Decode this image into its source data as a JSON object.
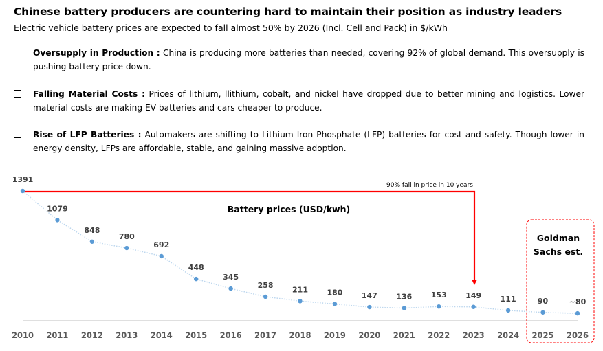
{
  "header": {
    "title": "Chinese battery producers are countering hard to maintain their position as industry leaders",
    "subtitle": "Electric vehicle battery prices are expected to fall almost 50% by 2026 (Incl. Cell and Pack) in $/kWh"
  },
  "bullets": [
    {
      "heading": "Oversupply in Production :",
      "text": " China is producing more batteries than needed, covering 92% of global demand. This oversupply is pushing battery price down."
    },
    {
      "heading": "Falling Material Costs :",
      "text": " Prices of lithium, llithium, cobalt, and nickel have dropped due to better mining and logistics. Lower material costs are making EV batteries and cars cheaper to produce."
    },
    {
      "heading": "Rise of LFP Batteries :",
      "text": " Automakers are shifting to Lithium Iron Phosphate (LFP) batteries for cost and safety. Though lower in energy density, LFPs are affordable, stable, and gaining massive adoption."
    }
  ],
  "chart_data": {
    "type": "line",
    "title": "Battery prices (USD/kwh)",
    "categories": [
      "2010",
      "2011",
      "2012",
      "2013",
      "2014",
      "2015",
      "2016",
      "2017",
      "2018",
      "2019",
      "2020",
      "2021",
      "2022",
      "2023",
      "2024",
      "2025",
      "2026"
    ],
    "values": [
      1391,
      1079,
      848,
      780,
      692,
      448,
      345,
      258,
      211,
      180,
      147,
      136,
      153,
      149,
      111,
      90,
      80
    ],
    "data_labels": [
      "1391",
      "1079",
      "848",
      "780",
      "692",
      "448",
      "345",
      "258",
      "211",
      "180",
      "147",
      "136",
      "153",
      "149",
      "111",
      "90",
      "~80"
    ],
    "ylim": [
      0,
      1391
    ],
    "xlabel": "",
    "ylabel": "",
    "grid": false,
    "annotations": {
      "fall_note": "90% fall in price in 10 years",
      "estimate_box": [
        "Goldman",
        "Sachs est."
      ]
    },
    "colors": {
      "series": "#5b9bd5",
      "annotation": "#ff0000",
      "axis": "#bfbfbf"
    }
  }
}
